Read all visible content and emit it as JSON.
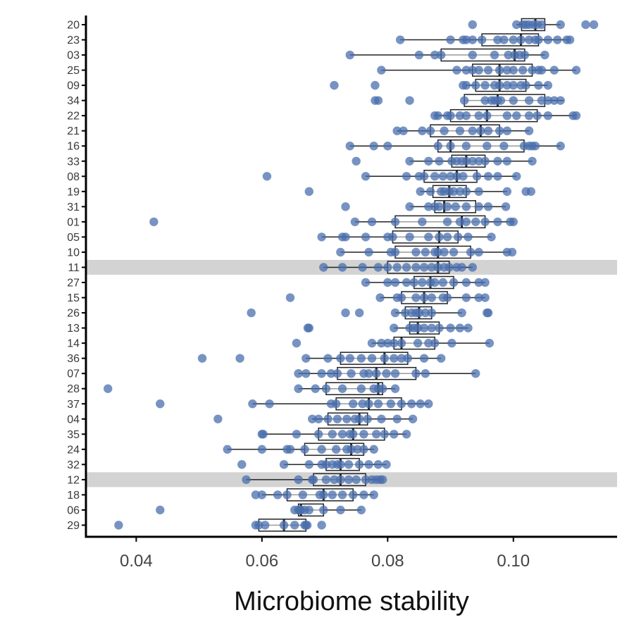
{
  "chart_data": {
    "type": "boxplot",
    "orientation": "horizontal",
    "xlabel": "Microbiome stability",
    "ylabel": "",
    "xlim": [
      0.032,
      0.1165
    ],
    "x_ticks": [
      0.04,
      0.06,
      0.08,
      0.1
    ],
    "x_tick_labels": [
      "0.04",
      "0.06",
      "0.08",
      "0.10"
    ],
    "point_color": "#4a6fae",
    "highlight_color": "#d3d3d3",
    "highlighted": [
      "11",
      "12"
    ],
    "grid": false,
    "categories": [
      {
        "label": "20",
        "min": 0.1005,
        "q1": 0.1013,
        "median": 0.1035,
        "q3": 0.105,
        "max": 0.1075,
        "points": [
          0.0935,
          0.1005,
          0.1015,
          0.102,
          0.1025,
          0.1032,
          0.1038,
          0.1045,
          0.1075,
          0.1115,
          0.1128
        ]
      },
      {
        "label": "23",
        "min": 0.082,
        "q1": 0.095,
        "median": 0.1012,
        "q3": 0.104,
        "max": 0.109,
        "points": [
          0.082,
          0.09,
          0.092,
          0.0925,
          0.0935,
          0.095,
          0.0975,
          0.0985,
          0.1,
          0.1012,
          0.1025,
          0.1035,
          0.104,
          0.1055,
          0.107,
          0.1085,
          0.109
        ]
      },
      {
        "label": "03",
        "min": 0.074,
        "q1": 0.0885,
        "median": 0.1002,
        "q3": 0.1018,
        "max": 0.105,
        "points": [
          0.074,
          0.085,
          0.0875,
          0.0885,
          0.0935,
          0.097,
          0.0992,
          0.1002,
          0.101,
          0.1018,
          0.105
        ]
      },
      {
        "label": "25",
        "min": 0.079,
        "q1": 0.0935,
        "median": 0.0978,
        "q3": 0.103,
        "max": 0.11,
        "points": [
          0.079,
          0.091,
          0.0925,
          0.0935,
          0.0945,
          0.096,
          0.0978,
          0.099,
          0.1,
          0.1015,
          0.103,
          0.104,
          0.1045,
          0.1065,
          0.11
        ]
      },
      {
        "label": "09",
        "min": 0.0925,
        "q1": 0.094,
        "median": 0.0978,
        "q3": 0.102,
        "max": 0.1055,
        "points": [
          0.0715,
          0.078,
          0.092,
          0.0925,
          0.094,
          0.0955,
          0.097,
          0.0978,
          0.099,
          0.1,
          0.1012,
          0.102,
          0.104,
          0.1055
        ]
      },
      {
        "label": "34",
        "min": 0.0922,
        "q1": 0.0922,
        "median": 0.0975,
        "q3": 0.105,
        "max": 0.108,
        "points": [
          0.078,
          0.0785,
          0.0835,
          0.0922,
          0.0955,
          0.0965,
          0.097,
          0.0975,
          0.098,
          0.1,
          0.1025,
          0.1045,
          0.1055,
          0.1065,
          0.1075
        ]
      },
      {
        "label": "22",
        "min": 0.0875,
        "q1": 0.09,
        "median": 0.0958,
        "q3": 0.1038,
        "max": 0.11,
        "points": [
          0.0875,
          0.088,
          0.0895,
          0.09,
          0.0915,
          0.0925,
          0.0945,
          0.0958,
          0.099,
          0.1005,
          0.1025,
          0.1038,
          0.1055,
          0.1095,
          0.11
        ]
      },
      {
        "label": "21",
        "min": 0.0815,
        "q1": 0.0868,
        "median": 0.0948,
        "q3": 0.0978,
        "max": 0.1025,
        "points": [
          0.0815,
          0.0825,
          0.0855,
          0.0868,
          0.089,
          0.0915,
          0.0935,
          0.0948,
          0.096,
          0.0978,
          0.099,
          0.1025
        ]
      },
      {
        "label": "16",
        "min": 0.074,
        "q1": 0.088,
        "median": 0.09,
        "q3": 0.1017,
        "max": 0.1075,
        "points": [
          0.074,
          0.0778,
          0.08,
          0.088,
          0.09,
          0.0925,
          0.0958,
          0.0985,
          0.1017,
          0.1025,
          0.103,
          0.1035,
          0.1075
        ]
      },
      {
        "label": "33",
        "min": 0.0835,
        "q1": 0.0902,
        "median": 0.0925,
        "q3": 0.0955,
        "max": 0.103,
        "points": [
          0.075,
          0.0835,
          0.0865,
          0.0882,
          0.0902,
          0.091,
          0.0918,
          0.0925,
          0.0935,
          0.0945,
          0.0955,
          0.0975,
          0.099,
          0.103
        ]
      },
      {
        "label": "08",
        "min": 0.0765,
        "q1": 0.0858,
        "median": 0.091,
        "q3": 0.0942,
        "max": 0.1005,
        "points": [
          0.0608,
          0.0765,
          0.083,
          0.085,
          0.0858,
          0.0875,
          0.0888,
          0.09,
          0.091,
          0.092,
          0.0942,
          0.096,
          0.0975,
          0.1005
        ]
      },
      {
        "label": "19",
        "min": 0.0852,
        "q1": 0.0872,
        "median": 0.0898,
        "q3": 0.0925,
        "max": 0.099,
        "points": [
          0.0675,
          0.0852,
          0.0868,
          0.0885,
          0.089,
          0.0898,
          0.0905,
          0.0915,
          0.0925,
          0.0945,
          0.099,
          0.102,
          0.1028
        ]
      },
      {
        "label": "31",
        "min": 0.0835,
        "q1": 0.0875,
        "median": 0.089,
        "q3": 0.094,
        "max": 0.0988,
        "points": [
          0.0733,
          0.0835,
          0.0865,
          0.0875,
          0.0882,
          0.0895,
          0.0908,
          0.0925,
          0.0945,
          0.096,
          0.0988
        ]
      },
      {
        "label": "01",
        "min": 0.0748,
        "q1": 0.0812,
        "median": 0.0918,
        "q3": 0.0955,
        "max": 0.1,
        "points": [
          0.0428,
          0.0748,
          0.0775,
          0.0812,
          0.0855,
          0.0895,
          0.0915,
          0.0925,
          0.094,
          0.0955,
          0.0975,
          0.0995,
          0.1
        ]
      },
      {
        "label": "05",
        "min": 0.0695,
        "q1": 0.0808,
        "median": 0.0882,
        "q3": 0.0912,
        "max": 0.0965,
        "points": [
          0.0695,
          0.0728,
          0.0733,
          0.0765,
          0.08,
          0.0808,
          0.0835,
          0.0865,
          0.0882,
          0.0895,
          0.0912,
          0.0928,
          0.0965
        ]
      },
      {
        "label": "10",
        "min": 0.0725,
        "q1": 0.0812,
        "median": 0.088,
        "q3": 0.0932,
        "max": 0.0995,
        "points": [
          0.0725,
          0.077,
          0.0805,
          0.0812,
          0.0845,
          0.086,
          0.0875,
          0.088,
          0.089,
          0.0905,
          0.0932,
          0.0945,
          0.099,
          0.0998
        ]
      },
      {
        "label": "11",
        "min": 0.0698,
        "q1": 0.08,
        "median": 0.088,
        "q3": 0.0898,
        "max": 0.0935,
        "points": [
          0.0698,
          0.0728,
          0.076,
          0.0785,
          0.08,
          0.0815,
          0.083,
          0.0845,
          0.0858,
          0.087,
          0.088,
          0.089,
          0.0898,
          0.091,
          0.0918,
          0.0935
        ]
      },
      {
        "label": "27",
        "min": 0.0765,
        "q1": 0.0842,
        "median": 0.0868,
        "q3": 0.0905,
        "max": 0.0955,
        "points": [
          0.0765,
          0.08,
          0.0812,
          0.083,
          0.0842,
          0.0855,
          0.0868,
          0.0875,
          0.0888,
          0.0905,
          0.0925,
          0.0945,
          0.0955
        ]
      },
      {
        "label": "15",
        "min": 0.0788,
        "q1": 0.0822,
        "median": 0.0858,
        "q3": 0.0895,
        "max": 0.0955,
        "points": [
          0.0645,
          0.0788,
          0.0815,
          0.0822,
          0.0845,
          0.0858,
          0.087,
          0.0888,
          0.0895,
          0.0925,
          0.0945,
          0.0955
        ]
      },
      {
        "label": "26",
        "min": 0.0812,
        "q1": 0.0828,
        "median": 0.085,
        "q3": 0.087,
        "max": 0.0918,
        "points": [
          0.0583,
          0.0733,
          0.0755,
          0.0812,
          0.0828,
          0.0838,
          0.0845,
          0.085,
          0.086,
          0.087,
          0.0918,
          0.0958,
          0.096
        ]
      },
      {
        "label": "13",
        "min": 0.081,
        "q1": 0.0835,
        "median": 0.0848,
        "q3": 0.0882,
        "max": 0.0928,
        "points": [
          0.0673,
          0.0675,
          0.081,
          0.0835,
          0.0842,
          0.0848,
          0.0858,
          0.087,
          0.0882,
          0.09,
          0.0915,
          0.0928
        ]
      },
      {
        "label": "14",
        "min": 0.0775,
        "q1": 0.081,
        "median": 0.0822,
        "q3": 0.0875,
        "max": 0.0962,
        "points": [
          0.0655,
          0.0775,
          0.079,
          0.08,
          0.081,
          0.0822,
          0.0848,
          0.0865,
          0.0875,
          0.0902,
          0.0962
        ]
      },
      {
        "label": "36",
        "min": 0.067,
        "q1": 0.0725,
        "median": 0.0795,
        "q3": 0.0832,
        "max": 0.0885,
        "points": [
          0.0505,
          0.0565,
          0.067,
          0.0705,
          0.0725,
          0.074,
          0.0758,
          0.0775,
          0.0795,
          0.081,
          0.0822,
          0.0832,
          0.0858,
          0.0885
        ]
      },
      {
        "label": "07",
        "min": 0.0658,
        "q1": 0.072,
        "median": 0.0782,
        "q3": 0.0845,
        "max": 0.094,
        "points": [
          0.0658,
          0.067,
          0.0695,
          0.071,
          0.072,
          0.0742,
          0.0762,
          0.077,
          0.0782,
          0.0798,
          0.0812,
          0.0845,
          0.086,
          0.094
        ]
      },
      {
        "label": "28",
        "min": 0.0658,
        "q1": 0.0702,
        "median": 0.0785,
        "q3": 0.0792,
        "max": 0.0812,
        "points": [
          0.0355,
          0.0658,
          0.0685,
          0.0702,
          0.0728,
          0.0758,
          0.0778,
          0.0785,
          0.0792,
          0.0812
        ]
      },
      {
        "label": "37",
        "min": 0.0585,
        "q1": 0.0718,
        "median": 0.077,
        "q3": 0.0822,
        "max": 0.0865,
        "points": [
          0.0438,
          0.0585,
          0.0612,
          0.071,
          0.0718,
          0.0745,
          0.076,
          0.077,
          0.0785,
          0.0805,
          0.0822,
          0.0838,
          0.0852,
          0.0865
        ]
      },
      {
        "label": "04",
        "min": 0.068,
        "q1": 0.0705,
        "median": 0.0755,
        "q3": 0.0768,
        "max": 0.084,
        "points": [
          0.053,
          0.068,
          0.069,
          0.0705,
          0.072,
          0.0735,
          0.0748,
          0.0755,
          0.0768,
          0.079,
          0.0815,
          0.084
        ]
      },
      {
        "label": "35",
        "min": 0.06,
        "q1": 0.069,
        "median": 0.0745,
        "q3": 0.0795,
        "max": 0.083,
        "points": [
          0.06,
          0.0602,
          0.0655,
          0.069,
          0.0712,
          0.0728,
          0.074,
          0.0745,
          0.0762,
          0.0782,
          0.0795,
          0.081,
          0.083
        ]
      },
      {
        "label": "24",
        "min": 0.0545,
        "q1": 0.0668,
        "median": 0.0742,
        "q3": 0.0762,
        "max": 0.0778,
        "points": [
          0.0545,
          0.06,
          0.064,
          0.0645,
          0.0668,
          0.0695,
          0.0718,
          0.0735,
          0.0742,
          0.0752,
          0.0762,
          0.0778
        ]
      },
      {
        "label": "32",
        "min": 0.0635,
        "q1": 0.0702,
        "median": 0.0725,
        "q3": 0.0755,
        "max": 0.0798,
        "points": [
          0.0568,
          0.0635,
          0.0675,
          0.0695,
          0.0702,
          0.0712,
          0.072,
          0.0725,
          0.0738,
          0.0755,
          0.077,
          0.0785,
          0.0798
        ]
      },
      {
        "label": "12",
        "min": 0.0575,
        "q1": 0.0682,
        "median": 0.0725,
        "q3": 0.0765,
        "max": 0.0792,
        "points": [
          0.0575,
          0.0658,
          0.068,
          0.0682,
          0.0702,
          0.0715,
          0.0725,
          0.0738,
          0.075,
          0.0765,
          0.0775,
          0.0782,
          0.0788,
          0.0792
        ]
      },
      {
        "label": "18",
        "min": 0.06,
        "q1": 0.064,
        "median": 0.0698,
        "q3": 0.0745,
        "max": 0.0778,
        "points": [
          0.059,
          0.06,
          0.0625,
          0.064,
          0.0665,
          0.0692,
          0.0698,
          0.0712,
          0.0728,
          0.0745,
          0.0762,
          0.0778
        ]
      },
      {
        "label": "06",
        "min": 0.0652,
        "q1": 0.0658,
        "median": 0.0662,
        "q3": 0.0698,
        "max": 0.0758,
        "points": [
          0.0438,
          0.0652,
          0.0658,
          0.066,
          0.0662,
          0.0668,
          0.0675,
          0.0698,
          0.0725,
          0.0758
        ]
      },
      {
        "label": "29",
        "min": 0.059,
        "q1": 0.0595,
        "median": 0.0635,
        "q3": 0.067,
        "max": 0.0672,
        "points": [
          0.0372,
          0.059,
          0.0595,
          0.0605,
          0.0635,
          0.0652,
          0.0668,
          0.067,
          0.0672,
          0.0695
        ]
      }
    ]
  }
}
